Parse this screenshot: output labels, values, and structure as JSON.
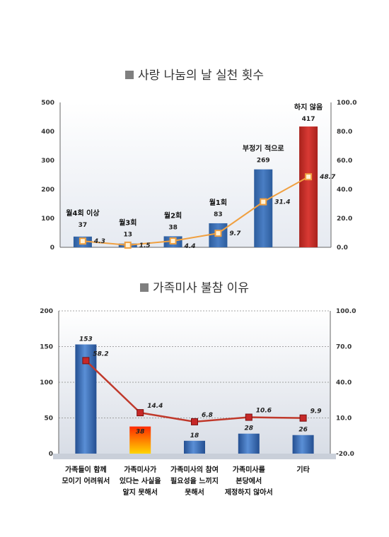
{
  "chart_data": [
    {
      "type": "bar",
      "title": "사랑 나눔의 날 실천 횟수",
      "categories": [
        "월4회 이상",
        "월3회",
        "월2회",
        "월1회",
        "부정기 적으로",
        "하지 않음"
      ],
      "series": [
        {
          "values": [
            37,
            13,
            38,
            83,
            269,
            417
          ]
        },
        {
          "type": "line",
          "axis": "right",
          "values": [
            4.3,
            1.5,
            4.4,
            9.7,
            31.4,
            48.7
          ]
        }
      ],
      "y_left_ticks": [
        "0",
        "100",
        "200",
        "300",
        "400",
        "500"
      ],
      "y_right_ticks": [
        "0.0",
        "20.0",
        "40.0",
        "60.0",
        "80.0",
        "100.0"
      ],
      "ylim": [
        0,
        500
      ],
      "y2lim": [
        0,
        100
      ],
      "colors": {
        "bar": "#4a7ec4",
        "highlight": "#d93a34",
        "line": "#f0a040"
      }
    },
    {
      "type": "bar",
      "title": "가족미사 불참 이유",
      "categories": [
        [
          "가족들이 함께",
          "모이기 어려워서"
        ],
        [
          "가족미사가",
          "있다는 사실을",
          "알지 못해서"
        ],
        [
          "가족미사의 참여",
          "필요성을 느끼지",
          "못해서"
        ],
        [
          "가족미사를",
          "본당에서",
          "제정하지 않아서"
        ],
        [
          "기타"
        ]
      ],
      "series": [
        {
          "values": [
            153,
            38,
            18,
            28,
            26
          ]
        },
        {
          "type": "line",
          "axis": "right",
          "values": [
            58.2,
            14.4,
            6.8,
            10.6,
            9.9
          ]
        }
      ],
      "y_left_ticks": [
        "0",
        "50",
        "100",
        "150",
        "200"
      ],
      "y_right_ticks": [
        "-20.0",
        "10.0",
        "40.0",
        "70.0",
        "100.0"
      ],
      "ylim": [
        0,
        200
      ],
      "y2lim": [
        -20,
        100
      ],
      "colors": {
        "bar": "#3d72c0",
        "highlight_top": "#ff2a00",
        "highlight_bottom": "#ffd400",
        "line": "#c0392b"
      }
    }
  ]
}
